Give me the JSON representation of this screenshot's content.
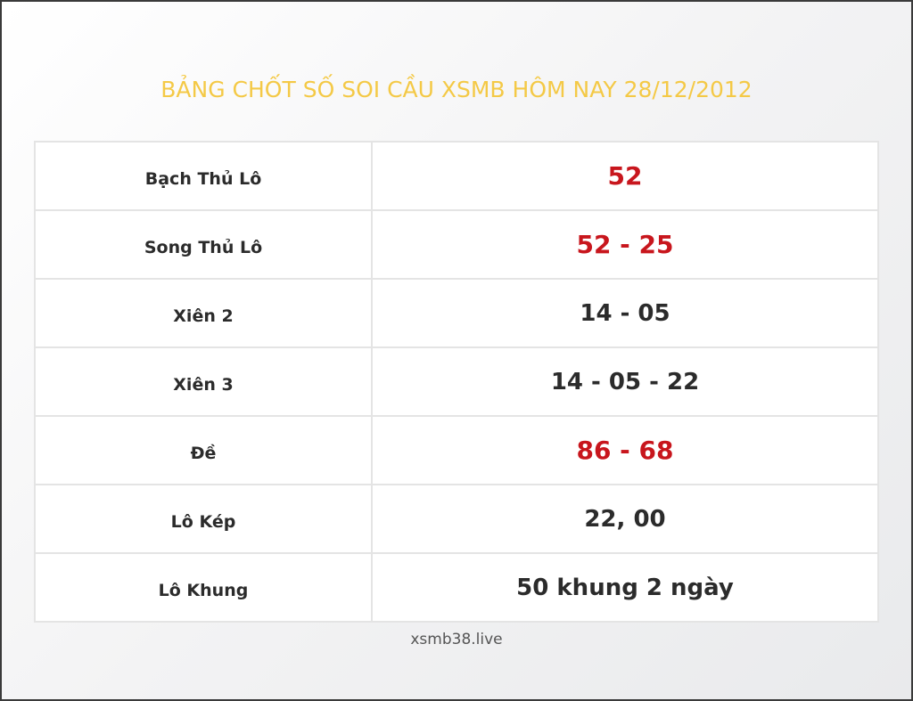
{
  "title": "BẢNG CHỐT SỐ SOI CẦU XSMB HÔM NAY 28/12/2012",
  "colors": {
    "title": "#f4c946",
    "highlight": "#c8161d",
    "text": "#2b2b2b"
  },
  "rows": [
    {
      "label": "Bạch Thủ Lô",
      "value": "52",
      "highlight": true
    },
    {
      "label": "Song Thủ Lô",
      "value": "52 - 25",
      "highlight": true
    },
    {
      "label": "Xiên 2",
      "value": "14 - 05",
      "highlight": false
    },
    {
      "label": "Xiên 3",
      "value": "14 - 05 - 22",
      "highlight": false
    },
    {
      "label": "Đề",
      "value": "86 - 68",
      "highlight": true
    },
    {
      "label": "Lô Kép",
      "value": "22, 00",
      "highlight": false
    },
    {
      "label": "Lô Khung",
      "value": "50 khung 2 ngày",
      "highlight": false
    }
  ],
  "footer": "xsmb38.live"
}
